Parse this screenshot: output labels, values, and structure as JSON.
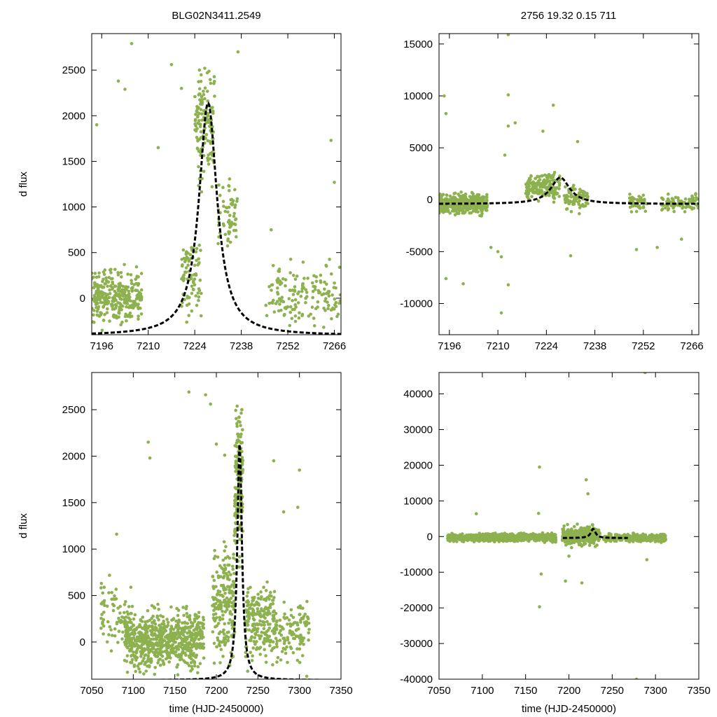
{
  "figure": {
    "title_left": "BLG02N3411.2549",
    "title_right": "2756  19.32  0.15  711",
    "point_color": "#8db14f",
    "model_color": "#000000"
  },
  "chart_data": [
    {
      "id": "top-left",
      "type": "scatter",
      "title": "BLG02N3411.2549",
      "xlabel": "",
      "ylabel": "d flux",
      "xlim": [
        7193,
        7268
      ],
      "ylim": [
        -400,
        2900
      ],
      "xticks": [
        7196,
        7210,
        7224,
        7238,
        7252,
        7266
      ],
      "yticks": [
        0,
        500,
        1000,
        1500,
        2000,
        2500
      ],
      "model": {
        "type": "peak",
        "t0": 7228,
        "tau": 3.3,
        "amp": 2550,
        "base": -410
      },
      "point_clusters": [
        {
          "x": [
            7193,
            7208
          ],
          "y": [
            -400,
            450
          ],
          "n": 300
        },
        {
          "x": [
            7220,
            7226
          ],
          "y": [
            -400,
            900
          ],
          "n": 80
        },
        {
          "x": [
            7224,
            7230
          ],
          "y": [
            1000,
            2850
          ],
          "n": 140
        },
        {
          "x": [
            7231,
            7237
          ],
          "y": [
            350,
            1500
          ],
          "n": 60
        },
        {
          "x": [
            7245,
            7268
          ],
          "y": [
            -400,
            500
          ],
          "n": 160
        }
      ],
      "outliers": [
        [
          7194.5,
          1900
        ],
        [
          7201,
          2380
        ],
        [
          7205,
          2790
        ],
        [
          7203,
          2290
        ],
        [
          7217,
          2560
        ],
        [
          7220,
          2300
        ],
        [
          7213,
          1650
        ],
        [
          7247,
          750
        ],
        [
          7265,
          1730
        ],
        [
          7266,
          1270
        ],
        [
          7237,
          2700
        ]
      ]
    },
    {
      "id": "top-right",
      "type": "scatter",
      "title": "2756  19.32  0.15  711",
      "xlabel": "",
      "ylabel": "",
      "xlim": [
        7193,
        7268
      ],
      "ylim": [
        -13000,
        16000
      ],
      "xticks": [
        7196,
        7210,
        7224,
        7238,
        7252,
        7266
      ],
      "yticks": [
        -10000,
        -5000,
        0,
        5000,
        10000,
        15000
      ],
      "model": {
        "type": "peak",
        "t0": 7228,
        "tau": 3.3,
        "amp": 2550,
        "base": -410
      },
      "point_clusters": [
        {
          "x": [
            7193,
            7207
          ],
          "y": [
            -1800,
            1000
          ],
          "n": 380
        },
        {
          "x": [
            7218,
            7228
          ],
          "y": [
            -500,
            3000
          ],
          "n": 180
        },
        {
          "x": [
            7229,
            7236
          ],
          "y": [
            -1500,
            2000
          ],
          "n": 80
        },
        {
          "x": [
            7248,
            7253
          ],
          "y": [
            -1500,
            800
          ],
          "n": 50
        },
        {
          "x": [
            7257,
            7268
          ],
          "y": [
            -1500,
            800
          ],
          "n": 80
        }
      ],
      "outliers": [
        [
          7194.5,
          10000
        ],
        [
          7195,
          8300
        ],
        [
          7213,
          15900
        ],
        [
          7213,
          10100
        ],
        [
          7213,
          7100
        ],
        [
          7212,
          4300
        ],
        [
          7215,
          7400
        ],
        [
          7213,
          -8200
        ],
        [
          7211,
          -10900
        ],
        [
          7200,
          -8100
        ],
        [
          7195,
          -7600
        ],
        [
          7226,
          9100
        ],
        [
          7223,
          6600
        ],
        [
          7210,
          -5000
        ],
        [
          7211,
          -5500
        ],
        [
          7233,
          5600
        ],
        [
          7250,
          -4800
        ],
        [
          7256,
          -4600
        ],
        [
          7263,
          -3800
        ],
        [
          7231,
          -5400
        ],
        [
          7208,
          -4600
        ]
      ]
    },
    {
      "id": "bottom-left",
      "type": "scatter",
      "title": "",
      "xlabel": "time (HJD-2450000)",
      "ylabel": "d flux",
      "xlim": [
        7050,
        7350
      ],
      "ylim": [
        -400,
        2900
      ],
      "xticks": [
        7050,
        7100,
        7150,
        7200,
        7250,
        7300,
        7350
      ],
      "yticks": [
        0,
        500,
        1000,
        1500,
        2000,
        2500
      ],
      "model": {
        "type": "peak",
        "t0": 7228,
        "tau": 3.3,
        "amp": 2550,
        "base": -410
      },
      "point_clusters": [
        {
          "x": [
            7090,
            7185
          ],
          "y": [
            -400,
            450
          ],
          "n": 700
        },
        {
          "x": [
            7060,
            7100
          ],
          "y": [
            -400,
            900
          ],
          "n": 80
        },
        {
          "x": [
            7195,
            7222
          ],
          "y": [
            -400,
            1200
          ],
          "n": 200
        },
        {
          "x": [
            7222,
            7232
          ],
          "y": [
            500,
            2850
          ],
          "n": 180
        },
        {
          "x": [
            7235,
            7270
          ],
          "y": [
            -400,
            800
          ],
          "n": 200
        },
        {
          "x": [
            7270,
            7312
          ],
          "y": [
            -400,
            600
          ],
          "n": 120
        }
      ],
      "outliers": [
        [
          7167,
          2690
        ],
        [
          7187,
          2660
        ],
        [
          7193,
          2560
        ],
        [
          7118,
          2150
        ],
        [
          7120,
          1980
        ],
        [
          7200,
          2130
        ],
        [
          7210,
          2010
        ],
        [
          7269,
          1950
        ],
        [
          7300,
          1850
        ],
        [
          7298,
          1450
        ],
        [
          7281,
          1400
        ],
        [
          7080,
          1160
        ]
      ]
    },
    {
      "id": "bottom-right",
      "type": "scatter",
      "title": "",
      "xlabel": "time (HJD-2450000)",
      "ylabel": "",
      "xlim": [
        7050,
        7350
      ],
      "ylim": [
        -40000,
        46000
      ],
      "xticks": [
        7050,
        7100,
        7150,
        7200,
        7250,
        7300,
        7350
      ],
      "yticks": [
        -40000,
        -30000,
        -20000,
        -10000,
        0,
        10000,
        20000,
        30000,
        40000
      ],
      "model": {
        "type": "peak",
        "t0": 7228,
        "tau": 3.3,
        "amp": 2550,
        "base": -410,
        "x_range": [
          7193,
          7268
        ]
      },
      "point_clusters": [
        {
          "x": [
            7060,
            7185
          ],
          "y": [
            -1800,
            1300
          ],
          "n": 900
        },
        {
          "x": [
            7192,
            7236
          ],
          "y": [
            -3500,
            4000
          ],
          "n": 300
        },
        {
          "x": [
            7240,
            7312
          ],
          "y": [
            -2000,
            1200
          ],
          "n": 300
        }
      ],
      "outliers": [
        [
          7166,
          19500
        ],
        [
          7166,
          -19700
        ],
        [
          7220,
          15900
        ],
        [
          7288,
          46000
        ],
        [
          7278,
          -40000
        ],
        [
          7222,
          12000
        ],
        [
          7196,
          -12500
        ],
        [
          7215,
          -13000
        ],
        [
          7165,
          6500
        ],
        [
          7168,
          -10500
        ],
        [
          7093,
          6400
        ],
        [
          7200,
          -5500
        ],
        [
          7290,
          -6500
        ]
      ]
    }
  ]
}
